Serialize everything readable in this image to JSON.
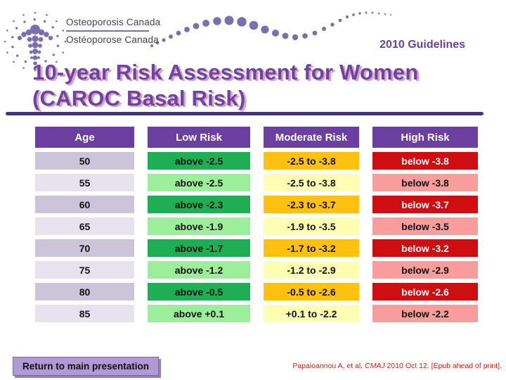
{
  "logo": {
    "line1": "Osteoporosis Canada",
    "line2": "Ostéoporose Canada"
  },
  "header": {
    "guidelines_label": "2010 Guidelines"
  },
  "title": {
    "line1": "10-year Risk Assessment for Women",
    "line2": "(CAROC Basal Risk)"
  },
  "table": {
    "headers": [
      "Age",
      "Low Risk",
      "Moderate Risk",
      "High Risk"
    ],
    "rows": [
      {
        "age": "50",
        "low": "above -2.5",
        "moderate": "-2.5 to -3.8",
        "high": "below -3.8"
      },
      {
        "age": "55",
        "low": "above -2.5",
        "moderate": "-2.5 to -3.8",
        "high": "below -3.8"
      },
      {
        "age": "60",
        "low": "above -2.3",
        "moderate": "-2.3 to -3.7",
        "high": "below -3.7"
      },
      {
        "age": "65",
        "low": "above -1.9",
        "moderate": "-1.9 to -3.5",
        "high": "below -3.5"
      },
      {
        "age": "70",
        "low": "above -1.7",
        "moderate": "-1.7 to -3.2",
        "high": "below -3.2"
      },
      {
        "age": "75",
        "low": "above -1.2",
        "moderate": "-1.2 to -2.9",
        "high": "below -2.9"
      },
      {
        "age": "80",
        "low": "above -0.5",
        "moderate": "-0.5 to -2.6",
        "high": "below -2.6"
      },
      {
        "age": "85",
        "low": "above +0.1",
        "moderate": "+0.1 to -2.2",
        "high": "below -2.2"
      }
    ]
  },
  "footer": {
    "button_label": "Return to main presentation",
    "citation_prefix": "Papaioannou A, et al. ",
    "citation_journal": "CMAJ",
    "citation_suffix": " 2010 Oct 12. [Epub ahead of print]."
  },
  "icons": {
    "logo": "osteoporosis-canada-dotted-figure-logo",
    "wave": "purple-dots-wave-decoration"
  },
  "colors": {
    "accent_purple": "#6b3fa0",
    "title_purple": "#7142a6",
    "title_shadow_pink": "#d9a4c3",
    "rule_purple": "#40318d",
    "dot_purple": "#7c6fb0",
    "age_dark": "#ccc5d9",
    "age_light": "#e7e3ee",
    "low_risk_dark": "#1fae54",
    "low_risk_light": "#9bef9b",
    "moderate_risk_dark": "#fec110",
    "moderate_risk_light": "#ffffb2",
    "high_risk_dark": "#cf0e12",
    "high_risk_light": "#f99c9c",
    "button_purple": "#b299d6",
    "citation_red": "#cc2218"
  }
}
